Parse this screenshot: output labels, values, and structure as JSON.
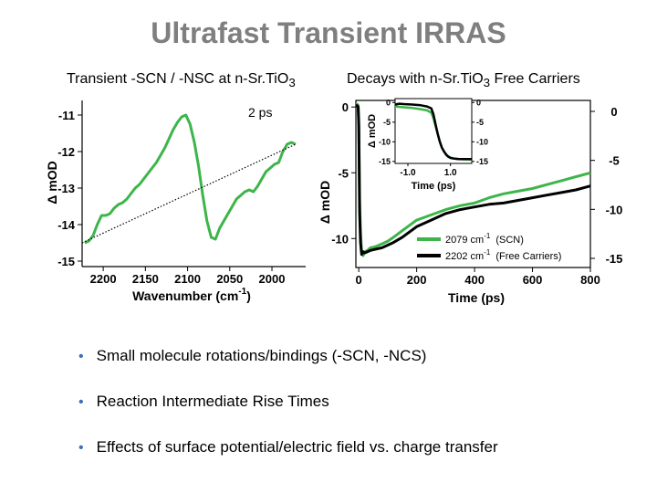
{
  "title": "Ultrafast Transient IRRAS",
  "subtitles": {
    "left": {
      "text": "Transient -SCN / -NSC at n-Sr.TiO",
      "sub": "3"
    },
    "right": {
      "text": "Decays with n-Sr.TiO",
      "sub": "3",
      "tail": " Free Carriers"
    }
  },
  "bullets": [
    "Small molecule rotations/bindings (-SCN, -NCS)",
    "Reaction Intermediate Rise Times",
    "Effects of surface potential/electric field vs. charge transfer"
  ],
  "colors": {
    "green": "#3db54a",
    "black": "#000000",
    "title_gray": "#7f7f7f",
    "bullet_blue": "#3b6fb6"
  },
  "chart_data": [
    {
      "type": "line",
      "title": "Transient -SCN / -NSC at n-Sr.TiO3",
      "annotation": "2 ps",
      "xlabel": "Wavenumber (cm",
      "xlabel_sup": "-1",
      "xlabel_tail": ")",
      "ylabel": "Δ mOD",
      "xlim": [
        2225,
        1960
      ],
      "ylim": [
        -15.1,
        -10.6
      ],
      "xticks": [
        2200,
        2150,
        2100,
        2050,
        2000
      ],
      "yticks": [
        -11,
        -12,
        -13,
        -14,
        -15
      ],
      "series": [
        {
          "name": "2 ps spectrum",
          "color": "#3db54a",
          "style": "solid",
          "x": [
            2222,
            2217,
            2212,
            2207,
            2202,
            2197,
            2192,
            2187,
            2182,
            2177,
            2172,
            2167,
            2162,
            2157,
            2152,
            2147,
            2142,
            2137,
            2132,
            2127,
            2122,
            2117,
            2112,
            2107,
            2102,
            2097,
            2092,
            2087,
            2082,
            2077,
            2072,
            2067,
            2062,
            2057,
            2052,
            2047,
            2042,
            2037,
            2032,
            2027,
            2022,
            2017,
            2012,
            2007,
            2002,
            1997,
            1992,
            1987,
            1982,
            1977,
            1972
          ],
          "y": [
            -14.5,
            -14.45,
            -14.3,
            -14.0,
            -13.75,
            -13.75,
            -13.7,
            -13.55,
            -13.45,
            -13.4,
            -13.3,
            -13.15,
            -13.0,
            -12.9,
            -12.75,
            -12.6,
            -12.45,
            -12.3,
            -12.1,
            -11.9,
            -11.65,
            -11.4,
            -11.2,
            -11.05,
            -11.0,
            -11.25,
            -11.75,
            -12.4,
            -13.2,
            -13.9,
            -14.35,
            -14.4,
            -14.1,
            -13.9,
            -13.7,
            -13.5,
            -13.3,
            -13.2,
            -13.1,
            -13.05,
            -13.1,
            -12.95,
            -12.75,
            -12.55,
            -12.45,
            -12.35,
            -12.3,
            -12.0,
            -11.8,
            -11.75,
            -11.8
          ]
        },
        {
          "name": "baseline",
          "color": "#000000",
          "style": "dotted",
          "x": [
            2225,
            1972
          ],
          "y": [
            -14.5,
            -11.8
          ]
        }
      ]
    },
    {
      "type": "line",
      "title": "Decays with n-Sr.TiO3 Free Carriers",
      "xlabel": "Time (ps)",
      "ylabel": "Δ mOD",
      "xlim": [
        -10,
        800
      ],
      "ylim": [
        -12.2,
        0.5
      ],
      "xticks": [
        0,
        200,
        400,
        600,
        800
      ],
      "yticks": [
        0,
        -5,
        -10
      ],
      "right_yticks": [
        0,
        -5,
        -10,
        -15
      ],
      "series": [
        {
          "name": "2079 cm-1 (SCN)",
          "legend_base": "2079 cm",
          "legend_sup": "-1",
          "legend_paren": "(SCN)",
          "color": "#3db54a",
          "x": [
            -10,
            -5,
            -2,
            0,
            3,
            6,
            10,
            15,
            20,
            30,
            40,
            60,
            80,
            100,
            120,
            150,
            200,
            250,
            300,
            350,
            400,
            450,
            500,
            550,
            600,
            650,
            700,
            750,
            800
          ],
          "y": [
            0.2,
            0.2,
            0.1,
            -1.0,
            -7.0,
            -9.5,
            -11.0,
            -11.3,
            -11.0,
            -10.9,
            -10.7,
            -10.6,
            -10.4,
            -10.2,
            -9.9,
            -9.4,
            -8.6,
            -8.2,
            -7.8,
            -7.5,
            -7.3,
            -6.9,
            -6.6,
            -6.4,
            -6.2,
            -5.9,
            -5.6,
            -5.3,
            -5.0
          ]
        },
        {
          "name": "2202 cm-1 (Free Carriers)",
          "legend_base": "2202 cm",
          "legend_sup": "-1",
          "legend_paren": "(Free Carriers)",
          "color": "#000000",
          "x": [
            -10,
            -5,
            -2,
            0,
            3,
            6,
            10,
            15,
            20,
            30,
            40,
            60,
            80,
            100,
            120,
            150,
            200,
            250,
            300,
            350,
            400,
            450,
            500,
            550,
            600,
            650,
            700,
            750,
            800
          ],
          "y": [
            0.1,
            0.1,
            0.0,
            -1.5,
            -8.0,
            -10.3,
            -11.2,
            -11.0,
            -11.1,
            -11.0,
            -10.9,
            -10.8,
            -10.7,
            -10.5,
            -10.3,
            -9.9,
            -9.1,
            -8.6,
            -8.1,
            -7.8,
            -7.6,
            -7.4,
            -7.3,
            -7.1,
            -6.9,
            -6.7,
            -6.5,
            -6.3,
            -6.0
          ]
        }
      ],
      "inset": {
        "xlabel": "Time (ps)",
        "ylabel": "Δ mOD",
        "xlim": [
          -1.6,
          2.0
        ],
        "ylim": [
          -15.5,
          1.0
        ],
        "xticks": [
          -1.0,
          1.0
        ],
        "xtick_labels": [
          "-1.0",
          "1.0"
        ],
        "yticks": [
          0,
          -5,
          -10,
          -15
        ],
        "right_yticks": [
          0,
          -5,
          -10,
          -15
        ],
        "series": [
          {
            "name": "2079 cm-1 (SCN)",
            "color": "#3db54a",
            "x": [
              -1.6,
              -1.2,
              -0.8,
              -0.4,
              -0.1,
              0.1,
              0.2,
              0.3,
              0.4,
              0.5,
              0.6,
              0.7,
              0.8,
              0.9,
              1.0,
              1.1,
              1.2,
              1.4,
              1.6,
              2.0
            ],
            "y": [
              -1.0,
              -1.2,
              -1.4,
              -1.7,
              -2.0,
              -2.6,
              -4.0,
              -6.0,
              -8.0,
              -10.0,
              -11.5,
              -12.5,
              -13.2,
              -13.7,
              -14.0,
              -14.2,
              -14.3,
              -14.4,
              -14.45,
              -14.5
            ]
          },
          {
            "name": "2202 cm-1 (Free Carriers)",
            "color": "#000000",
            "x": [
              -1.6,
              -1.4,
              -1.2,
              -0.8,
              -0.4,
              -0.1,
              0.1,
              0.2,
              0.3,
              0.4,
              0.5,
              0.6,
              0.7,
              0.8,
              0.9,
              1.0,
              1.2,
              1.4,
              1.6,
              2.0
            ],
            "y": [
              -0.5,
              -0.3,
              -0.4,
              -0.5,
              -0.7,
              -1.0,
              -1.5,
              -3.0,
              -5.5,
              -8.0,
              -10.0,
              -11.5,
              -12.5,
              -13.3,
              -13.8,
              -14.1,
              -14.3,
              -14.4,
              -14.4,
              -14.4
            ]
          }
        ]
      }
    }
  ]
}
